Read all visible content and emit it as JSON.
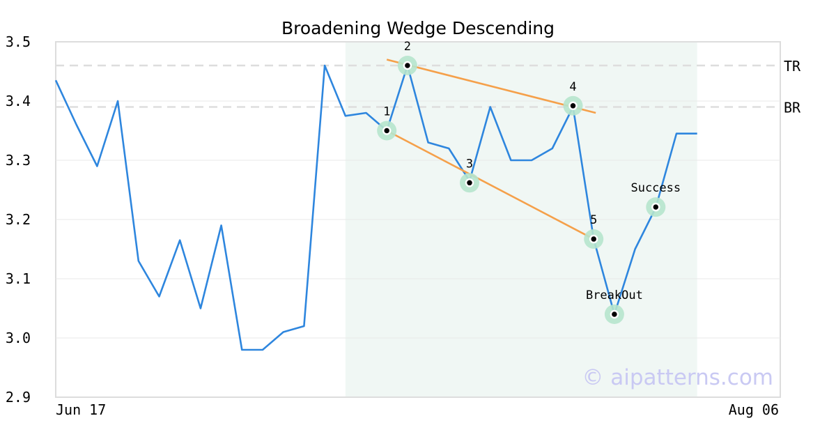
{
  "chart_data": {
    "type": "line",
    "title": "Broadening Wedge Descending",
    "xlabel": "",
    "ylabel": "",
    "ylim": [
      2.9,
      3.5
    ],
    "yticks": [
      "3.5",
      "3.4",
      "3.3",
      "3.2",
      "3.1",
      "3.0",
      "2.9"
    ],
    "x_tick_labels": [
      {
        "label": "Jun 17",
        "index": 0
      },
      {
        "label": "Aug 06",
        "index": 35
      }
    ],
    "grid": "horizontal",
    "series": [
      {
        "color": "#2e86de",
        "values": [
          3.435,
          3.36,
          3.29,
          3.4,
          3.13,
          3.07,
          3.165,
          3.05,
          3.19,
          2.98,
          2.98,
          3.01,
          3.02,
          3.46,
          3.375,
          3.38,
          3.35,
          3.46,
          3.33,
          3.32,
          3.265,
          3.39,
          3.3,
          3.3,
          3.32,
          3.39,
          3.167,
          3.04,
          3.15,
          3.22,
          3.345,
          3.345
        ]
      }
    ],
    "pattern_region": {
      "start_index": 14,
      "end_index": 31,
      "color": "#f0f7f4"
    },
    "levels": [
      {
        "label": "TR",
        "value": 3.46
      },
      {
        "label": "BR",
        "value": 3.39
      }
    ],
    "trend_lines": [
      {
        "color": "#f5a04a",
        "from": {
          "index": 16,
          "value": 3.47
        },
        "to": {
          "index": 26.1,
          "value": 3.38
        }
      },
      {
        "color": "#f5a04a",
        "from": {
          "index": 16,
          "value": 3.35
        },
        "to": {
          "index": 26,
          "value": 3.167
        }
      }
    ],
    "points": [
      {
        "label": "1",
        "index": 16,
        "value": 3.35,
        "label_pos": "above"
      },
      {
        "label": "2",
        "index": 17,
        "value": 3.46,
        "label_pos": "above"
      },
      {
        "label": "3",
        "index": 20,
        "value": 3.262,
        "label_pos": "above"
      },
      {
        "label": "4",
        "index": 25,
        "value": 3.392,
        "label_pos": "above"
      },
      {
        "label": "5",
        "index": 26,
        "value": 3.167,
        "label_pos": "above"
      },
      {
        "label": "BreakOut",
        "index": 27,
        "value": 3.04,
        "label_pos": "above"
      },
      {
        "label": "Success",
        "index": 29,
        "value": 3.221,
        "label_pos": "above"
      }
    ]
  },
  "watermark": "© aipatterns.com"
}
